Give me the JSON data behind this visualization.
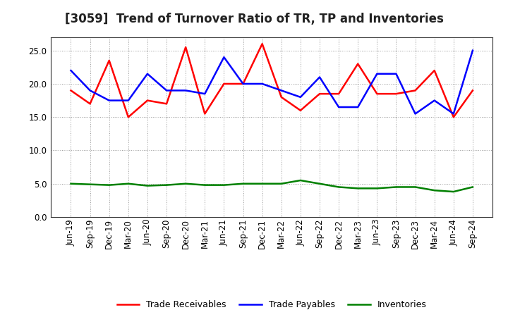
{
  "title": "[3059]  Trend of Turnover Ratio of TR, TP and Inventories",
  "labels": [
    "Jun-19",
    "Sep-19",
    "Dec-19",
    "Mar-20",
    "Jun-20",
    "Sep-20",
    "Dec-20",
    "Mar-21",
    "Jun-21",
    "Sep-21",
    "Dec-21",
    "Mar-22",
    "Jun-22",
    "Sep-22",
    "Dec-22",
    "Mar-23",
    "Jun-23",
    "Sep-23",
    "Dec-23",
    "Mar-24",
    "Jun-24",
    "Sep-24"
  ],
  "trade_receivables": [
    19.0,
    17.0,
    23.5,
    15.0,
    17.5,
    17.0,
    25.5,
    15.5,
    20.0,
    20.0,
    26.0,
    18.0,
    16.0,
    18.5,
    18.5,
    23.0,
    18.5,
    18.5,
    19.0,
    22.0,
    15.0,
    19.0
  ],
  "trade_payables": [
    22.0,
    19.0,
    17.5,
    17.5,
    21.5,
    19.0,
    19.0,
    18.5,
    24.0,
    20.0,
    20.0,
    19.0,
    18.0,
    21.0,
    16.5,
    16.5,
    21.5,
    21.5,
    15.5,
    17.5,
    15.5,
    25.0
  ],
  "inventories": [
    5.0,
    4.9,
    4.8,
    5.0,
    4.7,
    4.8,
    5.0,
    4.8,
    4.8,
    5.0,
    5.0,
    5.0,
    5.5,
    5.0,
    4.5,
    4.3,
    4.3,
    4.5,
    4.5,
    4.0,
    3.8,
    4.5
  ],
  "ylim": [
    0.0,
    27.0
  ],
  "yticks": [
    0.0,
    5.0,
    10.0,
    15.0,
    20.0,
    25.0
  ],
  "legend_labels": [
    "Trade Receivables",
    "Trade Payables",
    "Inventories"
  ],
  "line_colors": [
    "#ff0000",
    "#0000ff",
    "#008000"
  ],
  "background_color": "#ffffff",
  "grid_color": "#999999",
  "title_fontsize": 12,
  "tick_fontsize": 8.5,
  "legend_fontsize": 9
}
